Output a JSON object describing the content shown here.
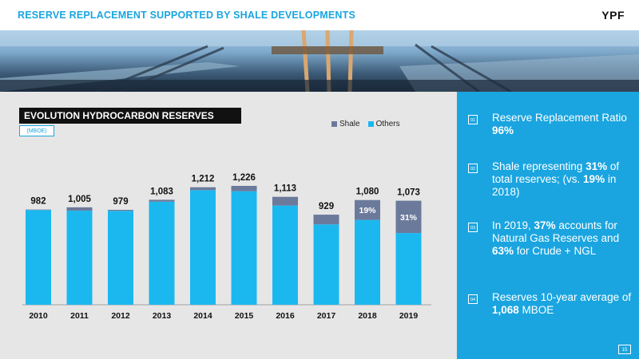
{
  "header": {
    "title": "RESERVE REPLACEMENT SUPPORTED BY SHALE DEVELOPMENTS",
    "logo": "YPF"
  },
  "colors": {
    "shale": "#6b7a9b",
    "others": "#1bb8f0",
    "accent": "#1aa5e0"
  },
  "chart_data": {
    "type": "bar",
    "stacked": true,
    "title": "EVOLUTION HYDROCARBON RESERVES",
    "unit": "(MBOE)",
    "categories": [
      "2010",
      "2011",
      "2012",
      "2013",
      "2014",
      "2015",
      "2016",
      "2017",
      "2018",
      "2019"
    ],
    "series": [
      {
        "name": "Shale",
        "values": [
          5,
          35,
          10,
          20,
          30,
          55,
          90,
          100,
          205,
          333
        ]
      },
      {
        "name": "Others",
        "values": [
          977,
          970,
          969,
          1063,
          1182,
          1171,
          1023,
          829,
          875,
          740
        ]
      }
    ],
    "totals": [
      982,
      1005,
      979,
      1083,
      1212,
      1226,
      1113,
      929,
      1080,
      1073
    ],
    "total_labels": [
      "982",
      "1,005",
      "979",
      "1,083",
      "1,212",
      "1,226",
      "1,113",
      "929",
      "1,080",
      "1,073"
    ],
    "annotations": [
      {
        "category": "2018",
        "label": "19%"
      },
      {
        "category": "2019",
        "label": "31%"
      }
    ],
    "ylim": [
      0,
      1300
    ],
    "legend_position": "top-right",
    "grid": false
  },
  "kpis": [
    {
      "num": "01",
      "parts": [
        {
          "t": "Reserve Replacement Ratio ",
          "b": false
        },
        {
          "t": "96%",
          "b": true
        }
      ]
    },
    {
      "num": "02",
      "parts": [
        {
          "t": "Shale representing ",
          "b": false
        },
        {
          "t": "31%",
          "b": true
        },
        {
          "t": " of total reserves; (vs. ",
          "b": false
        },
        {
          "t": "19%",
          "b": true
        },
        {
          "t": " in 2018)",
          "b": false
        }
      ]
    },
    {
      "num": "03",
      "parts": [
        {
          "t": "In 2019, ",
          "b": false
        },
        {
          "t": "37%",
          "b": true
        },
        {
          "t": " accounts for Natural Gas Reserves and ",
          "b": false
        },
        {
          "t": "63%",
          "b": true
        },
        {
          "t": " for Crude + NGL",
          "b": false
        }
      ]
    },
    {
      "num": "04",
      "parts": [
        {
          "t": "Reserves 10-year average of ",
          "b": false
        },
        {
          "t": "1,068",
          "b": true
        },
        {
          "t": " MBOE",
          "b": false
        }
      ]
    }
  ],
  "page_number": "15"
}
